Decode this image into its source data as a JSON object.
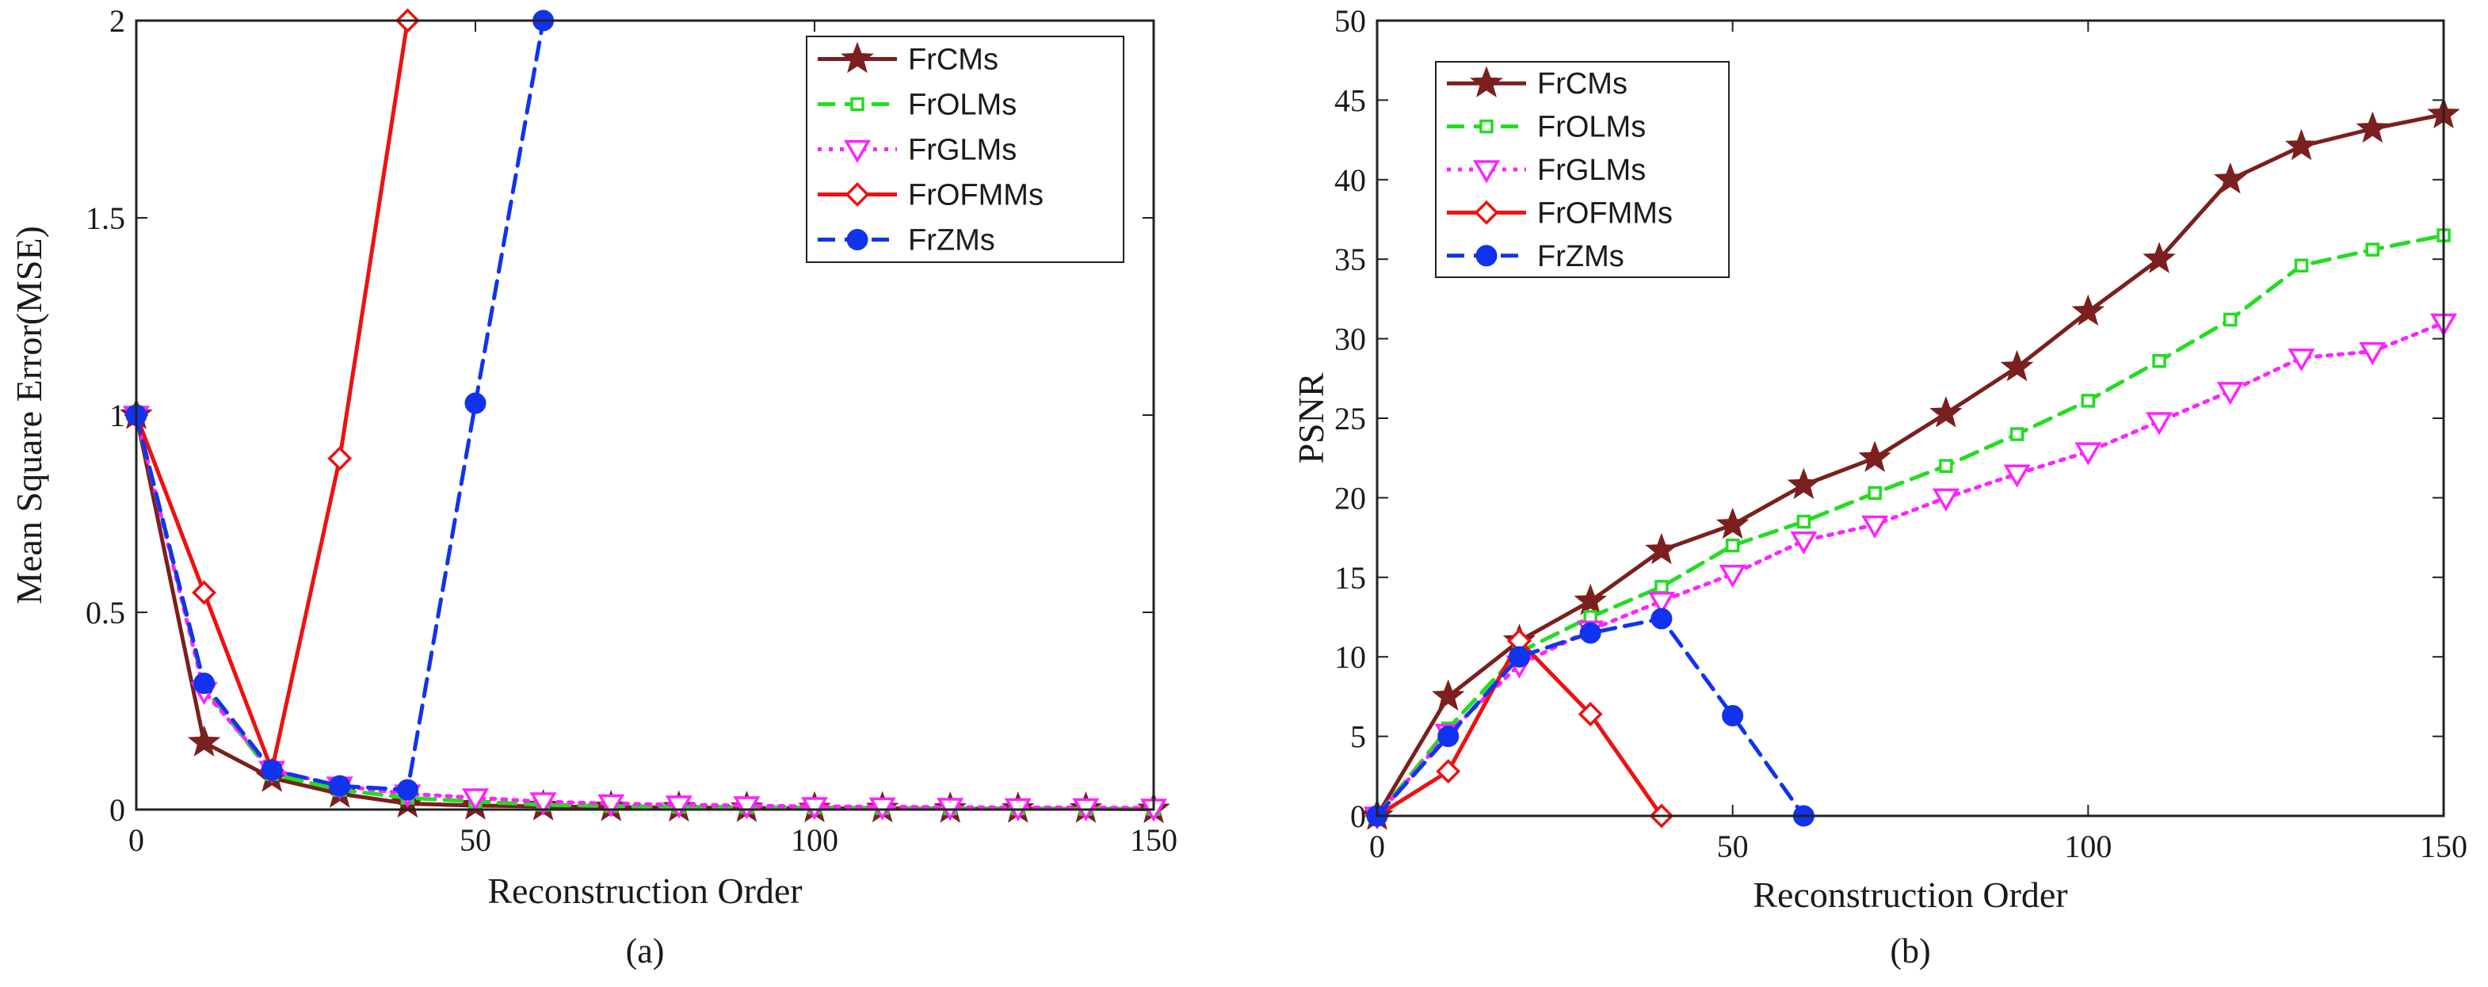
{
  "chart_data": [
    {
      "type": "line",
      "caption": "(a)",
      "xlabel": "Reconstruction Order",
      "ylabel": "Mean Square Error(MSE)",
      "xlim": [
        0,
        150
      ],
      "ylim": [
        0,
        2
      ],
      "xticks": [
        0,
        50,
        100,
        150
      ],
      "yticks": [
        0,
        0.5,
        1,
        1.5,
        2
      ],
      "xtick_labels": [
        "0",
        "50",
        "100",
        "150"
      ],
      "ytick_labels": [
        "0",
        "0.5",
        "1",
        "1.5",
        "2"
      ],
      "legend": "top-right",
      "series": [
        {
          "name": "FrCMs",
          "marker": "star",
          "dash": "solid",
          "color": "#7b1f1f",
          "x": [
            0,
            10,
            20,
            30,
            40,
            50,
            60,
            70,
            80,
            90,
            100,
            110,
            120,
            130,
            140,
            150
          ],
          "y": [
            1,
            0.17,
            0.08,
            0.04,
            0.015,
            0.01,
            0.008,
            0.006,
            0.005,
            0.004,
            0.003,
            0.003,
            0.002,
            0.002,
            0.002,
            0.001
          ]
        },
        {
          "name": "FrOLMs",
          "marker": "square",
          "dash": "dashed",
          "color": "#22dd22",
          "x": [
            0,
            10,
            20,
            30,
            40,
            50,
            60,
            70,
            80,
            90,
            100,
            110,
            120,
            130,
            140,
            150
          ],
          "y": [
            1,
            0.31,
            0.09,
            0.05,
            0.03,
            0.02,
            0.012,
            0.009,
            0.007,
            0.006,
            0.005,
            0.004,
            0.003,
            0.003,
            0.002,
            0.002
          ]
        },
        {
          "name": "FrGLMs",
          "marker": "triangle-down",
          "dash": "dotted",
          "color": "#ff22ff",
          "x": [
            0,
            10,
            20,
            30,
            40,
            50,
            60,
            70,
            80,
            90,
            100,
            110,
            120,
            130,
            140,
            150
          ],
          "y": [
            1,
            0.3,
            0.1,
            0.06,
            0.04,
            0.03,
            0.02,
            0.015,
            0.012,
            0.01,
            0.008,
            0.007,
            0.006,
            0.005,
            0.005,
            0.004
          ]
        },
        {
          "name": "FrOFMMs",
          "marker": "diamond",
          "dash": "solid",
          "color": "#ee1111",
          "x": [
            0,
            10,
            20,
            30,
            40
          ],
          "y": [
            1,
            0.55,
            0.1,
            0.89,
            2
          ]
        },
        {
          "name": "FrZMs",
          "marker": "circle",
          "dash": "dashed",
          "color": "#1133ee",
          "x": [
            0,
            10,
            20,
            30,
            40,
            50,
            60
          ],
          "y": [
            1,
            0.32,
            0.1,
            0.06,
            0.05,
            1.03,
            2
          ]
        }
      ]
    },
    {
      "type": "line",
      "caption": "(b)",
      "xlabel": "Reconstruction Order",
      "ylabel": "PSNR",
      "xlim": [
        0,
        150
      ],
      "ylim": [
        0,
        50
      ],
      "xticks": [
        0,
        50,
        100,
        150
      ],
      "yticks": [
        0,
        5,
        10,
        15,
        20,
        25,
        30,
        35,
        40,
        45,
        50
      ],
      "xtick_labels": [
        "0",
        "50",
        "100",
        "150"
      ],
      "ytick_labels": [
        "0",
        "5",
        "10",
        "15",
        "20",
        "25",
        "30",
        "35",
        "40",
        "45",
        "50"
      ],
      "legend": "top-left",
      "series": [
        {
          "name": "FrCMs",
          "marker": "star",
          "dash": "solid",
          "color": "#7b1f1f",
          "x": [
            0,
            10,
            20,
            30,
            40,
            50,
            60,
            70,
            80,
            90,
            100,
            110,
            120,
            130,
            140,
            150
          ],
          "y": [
            0,
            7.5,
            11,
            13.5,
            16.7,
            18.3,
            20.8,
            22.5,
            25.3,
            28.2,
            31.7,
            35,
            40,
            42.1,
            43.2,
            44.1
          ]
        },
        {
          "name": "FrOLMs",
          "marker": "square",
          "dash": "dashed",
          "color": "#22dd22",
          "x": [
            0,
            10,
            20,
            30,
            40,
            50,
            60,
            70,
            80,
            90,
            100,
            110,
            120,
            130,
            140,
            150
          ],
          "y": [
            0,
            5.5,
            10.3,
            12.5,
            14.4,
            17,
            18.5,
            20.3,
            22,
            24,
            26.1,
            28.6,
            31.2,
            34.6,
            35.6,
            36.5
          ]
        },
        {
          "name": "FrGLMs",
          "marker": "triangle-down",
          "dash": "dotted",
          "color": "#ff22ff",
          "x": [
            0,
            10,
            20,
            30,
            40,
            50,
            60,
            70,
            80,
            90,
            100,
            110,
            120,
            130,
            140,
            150
          ],
          "y": [
            0,
            5.2,
            9.5,
            11.7,
            13.5,
            15.2,
            17.3,
            18.3,
            20,
            21.5,
            22.9,
            24.8,
            26.7,
            28.8,
            29.2,
            31
          ]
        },
        {
          "name": "FrOFMMs",
          "marker": "diamond",
          "dash": "solid",
          "color": "#ee1111",
          "x": [
            0,
            10,
            20,
            30,
            40
          ],
          "y": [
            0,
            2.8,
            11,
            6.4,
            0
          ]
        },
        {
          "name": "FrZMs",
          "marker": "circle",
          "dash": "dashed",
          "color": "#1133ee",
          "x": [
            0,
            10,
            20,
            30,
            40,
            50,
            60
          ],
          "y": [
            0,
            5,
            10,
            11.5,
            12.4,
            6.3,
            0
          ]
        }
      ]
    }
  ]
}
